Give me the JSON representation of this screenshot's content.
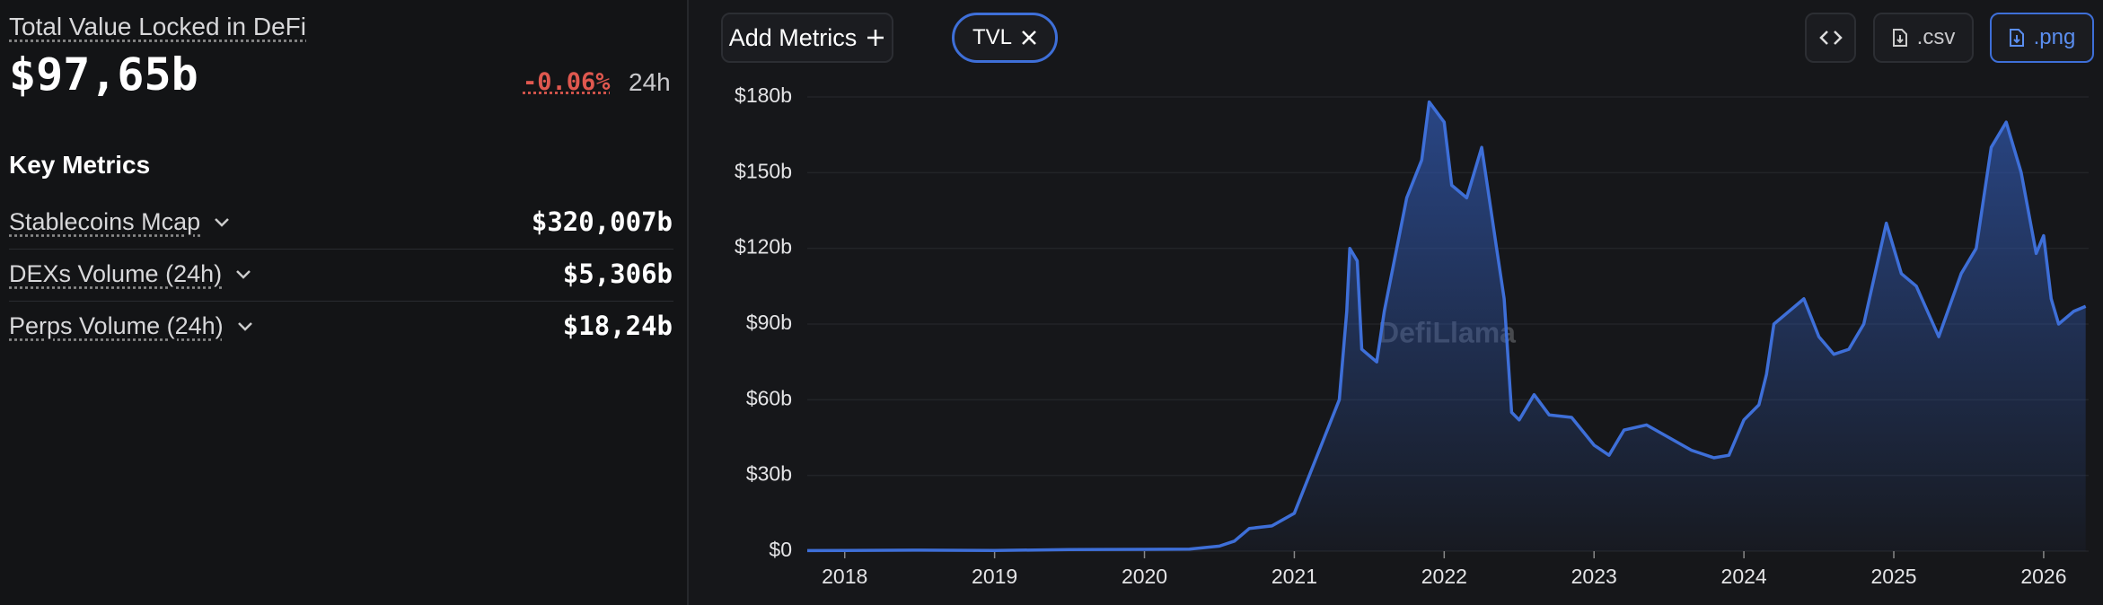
{
  "summary": {
    "title": "Total Value Locked in DeFi",
    "value": "$97,65b",
    "change": "-0.06%",
    "period": "24h"
  },
  "key_metrics": {
    "title": "Key Metrics",
    "items": [
      {
        "label": "Stablecoins Mcap",
        "value": "$320,007b"
      },
      {
        "label": "DEXs Volume (24h)",
        "value": "$5,306b"
      },
      {
        "label": "Perps Volume (24h)",
        "value": "$18,24b"
      }
    ]
  },
  "toolbar": {
    "add_metrics": "Add Metrics",
    "tag": "TVL",
    "csv": ".csv",
    "png": ".png"
  },
  "chart_data": {
    "type": "area",
    "watermark": "DefiLlama",
    "x": [
      2017.75,
      2018,
      2018.5,
      2019,
      2019.5,
      2020,
      2020.3,
      2020.5,
      2020.6,
      2020.7,
      2020.85,
      2021.0,
      2021.1,
      2021.2,
      2021.3,
      2021.35,
      2021.37,
      2021.42,
      2021.45,
      2021.55,
      2021.6,
      2021.75,
      2021.85,
      2021.9,
      2022.0,
      2022.05,
      2022.15,
      2022.25,
      2022.35,
      2022.4,
      2022.45,
      2022.5,
      2022.6,
      2022.7,
      2022.85,
      2023.0,
      2023.1,
      2023.2,
      2023.35,
      2023.5,
      2023.65,
      2023.8,
      2023.9,
      2024.0,
      2024.1,
      2024.15,
      2024.2,
      2024.3,
      2024.4,
      2024.5,
      2024.6,
      2024.7,
      2024.8,
      2024.95,
      2025.05,
      2025.15,
      2025.3,
      2025.45,
      2025.55,
      2025.65,
      2025.75,
      2025.85,
      2025.95,
      2026.0,
      2026.05,
      2026.1,
      2026.2,
      2026.28
    ],
    "series": [
      {
        "name": "TVL",
        "color": "#3e6fd8",
        "values": [
          0.2,
          0.3,
          0.4,
          0.3,
          0.6,
          0.7,
          0.8,
          2,
          4,
          9,
          10,
          15,
          30,
          45,
          60,
          95,
          120,
          115,
          80,
          75,
          95,
          140,
          155,
          178,
          170,
          145,
          140,
          160,
          120,
          100,
          55,
          52,
          62,
          54,
          53,
          42,
          38,
          48,
          50,
          45,
          40,
          37,
          38,
          52,
          58,
          70,
          90,
          95,
          100,
          85,
          78,
          80,
          90,
          130,
          110,
          105,
          85,
          110,
          120,
          160,
          170,
          150,
          118,
          125,
          100,
          90,
          95,
          97
        ]
      }
    ],
    "xlim": [
      2017.75,
      2026.3
    ],
    "xticks": [
      2018,
      2019,
      2020,
      2021,
      2022,
      2023,
      2024,
      2025,
      2026
    ],
    "ylim": [
      0,
      180
    ],
    "yticks": [
      {
        "value": 0,
        "label": "$0"
      },
      {
        "value": 30,
        "label": "$30b"
      },
      {
        "value": 60,
        "label": "$60b"
      },
      {
        "value": 90,
        "label": "$90b"
      },
      {
        "value": 120,
        "label": "$120b"
      },
      {
        "value": 150,
        "label": "$150b"
      },
      {
        "value": 180,
        "label": "$180b"
      }
    ]
  }
}
